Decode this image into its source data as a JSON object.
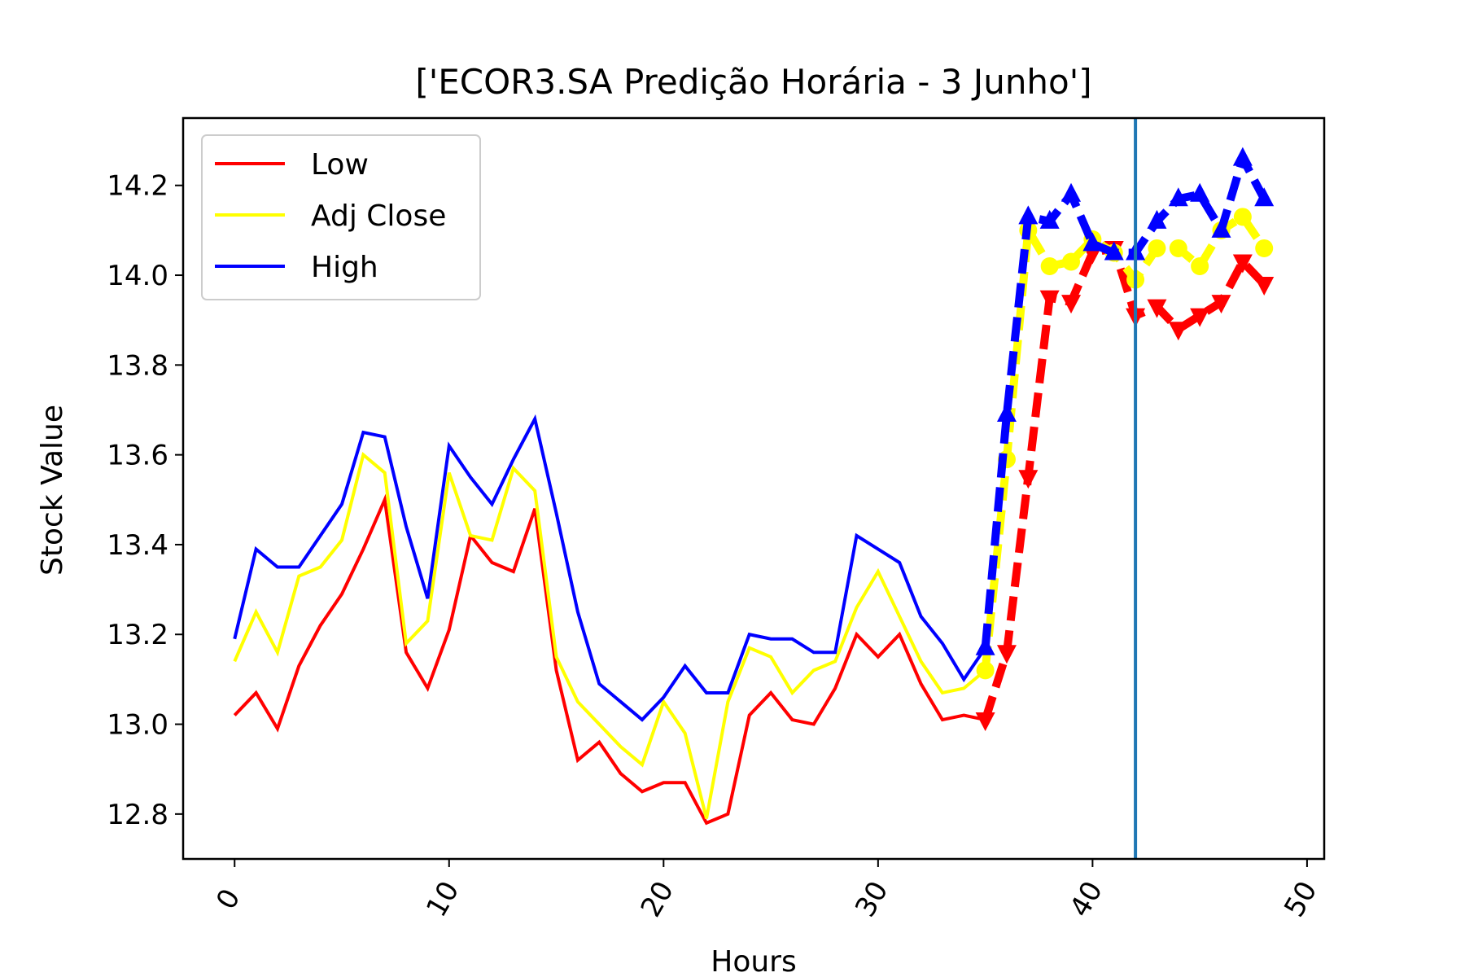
{
  "chart_data": {
    "type": "line",
    "title": "['ECOR3.SA Predição Horária - 3 Junho']",
    "xlabel": "Hours",
    "ylabel": "Stock Value",
    "xlim": [
      -2.4,
      50.8
    ],
    "ylim": [
      12.7,
      14.35
    ],
    "xticks": [
      0,
      10,
      20,
      30,
      40,
      50
    ],
    "xtick_labels": [
      "0",
      "10",
      "20",
      "30",
      "40",
      "50"
    ],
    "yticks": [
      12.8,
      13.0,
      13.2,
      13.4,
      13.6,
      13.8,
      14.0,
      14.2
    ],
    "ytick_labels": [
      "12.8",
      "13.0",
      "13.2",
      "13.4",
      "13.6",
      "13.8",
      "14.0",
      "14.2"
    ],
    "grid": false,
    "legend": {
      "position": "top-left",
      "entries": [
        "Low",
        "Adj Close",
        "High"
      ]
    },
    "vline_x": 42,
    "vline_color": "#1f77b4",
    "colors": {
      "Low": "#ff0000",
      "Adj Close": "#ffff00",
      "High": "#0000ff"
    },
    "series": [
      {
        "name": "Low",
        "x": [
          0,
          1,
          2,
          3,
          4,
          5,
          6,
          7,
          8,
          9,
          10,
          11,
          12,
          13,
          14,
          15,
          16,
          17,
          18,
          19,
          20,
          21,
          22,
          23,
          24,
          25,
          26,
          27,
          28,
          29,
          30,
          31,
          32,
          33,
          34,
          35
        ],
        "values": [
          13.02,
          13.07,
          12.99,
          13.13,
          13.22,
          13.29,
          13.39,
          13.5,
          13.16,
          13.08,
          13.21,
          13.42,
          13.36,
          13.34,
          13.48,
          13.12,
          12.92,
          12.96,
          12.89,
          12.85,
          12.87,
          12.87,
          12.78,
          12.8,
          13.02,
          13.07,
          13.01,
          13.0,
          13.08,
          13.2,
          13.15,
          13.2,
          13.09,
          13.01,
          13.02,
          13.01
        ]
      },
      {
        "name": "Adj Close",
        "x": [
          0,
          1,
          2,
          3,
          4,
          5,
          6,
          7,
          8,
          9,
          10,
          11,
          12,
          13,
          14,
          15,
          16,
          17,
          18,
          19,
          20,
          21,
          22,
          23,
          24,
          25,
          26,
          27,
          28,
          29,
          30,
          31,
          32,
          33,
          34,
          35
        ],
        "values": [
          13.14,
          13.25,
          13.16,
          13.33,
          13.35,
          13.41,
          13.6,
          13.56,
          13.18,
          13.23,
          13.56,
          13.42,
          13.41,
          13.57,
          13.52,
          13.15,
          13.05,
          13.0,
          12.95,
          12.91,
          13.05,
          12.98,
          12.79,
          13.05,
          13.17,
          13.15,
          13.07,
          13.12,
          13.14,
          13.26,
          13.34,
          13.24,
          13.14,
          13.07,
          13.08,
          13.12
        ]
      },
      {
        "name": "High",
        "x": [
          0,
          1,
          2,
          3,
          4,
          5,
          6,
          7,
          8,
          9,
          10,
          11,
          12,
          13,
          14,
          15,
          16,
          17,
          18,
          19,
          20,
          21,
          22,
          23,
          24,
          25,
          26,
          27,
          28,
          29,
          30,
          31,
          32,
          33,
          34,
          35
        ],
        "values": [
          13.19,
          13.39,
          13.35,
          13.35,
          13.42,
          13.49,
          13.65,
          13.64,
          13.44,
          13.28,
          13.62,
          13.55,
          13.49,
          13.59,
          13.68,
          13.47,
          13.25,
          13.09,
          13.05,
          13.01,
          13.06,
          13.13,
          13.07,
          13.07,
          13.2,
          13.19,
          13.19,
          13.16,
          13.16,
          13.42,
          13.39,
          13.36,
          13.24,
          13.18,
          13.1,
          13.17
        ]
      }
    ],
    "prediction_series": [
      {
        "name": "Low",
        "x": [
          35,
          36,
          37,
          38,
          39,
          40,
          41,
          42,
          43,
          44,
          45,
          46,
          47,
          48
        ],
        "values": [
          13.01,
          13.16,
          13.55,
          13.95,
          13.94,
          14.05,
          14.06,
          13.91,
          13.93,
          13.88,
          13.91,
          13.94,
          14.03,
          13.98
        ]
      },
      {
        "name": "Adj Close",
        "x": [
          35,
          36,
          37,
          38,
          39,
          40,
          41,
          42,
          43,
          44,
          45,
          46,
          47,
          48
        ],
        "values": [
          13.12,
          13.59,
          14.1,
          14.02,
          14.03,
          14.08,
          14.05,
          13.99,
          14.06,
          14.06,
          14.02,
          14.1,
          14.13,
          14.06
        ]
      },
      {
        "name": "High",
        "x": [
          35,
          36,
          37,
          38,
          39,
          40,
          41,
          42,
          43,
          44,
          45,
          46,
          47,
          48
        ],
        "values": [
          13.17,
          13.69,
          14.13,
          14.12,
          14.18,
          14.07,
          14.05,
          14.05,
          14.12,
          14.17,
          14.18,
          14.1,
          14.26,
          14.17
        ]
      }
    ]
  }
}
